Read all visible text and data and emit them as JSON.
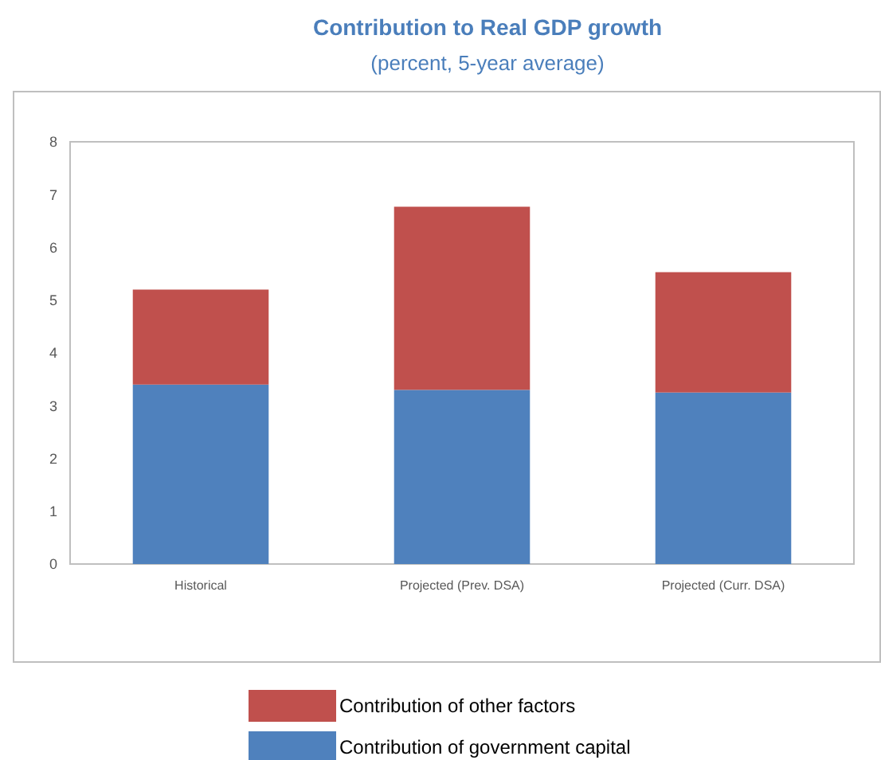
{
  "chart_data": {
    "type": "bar",
    "title": "Contribution to Real GDP growth",
    "subtitle": "(percent, 5-year average)",
    "categories": [
      "Historical",
      "Projected (Prev. DSA)",
      "Projected (Curr. DSA)"
    ],
    "series": [
      {
        "name": "Contribution of government capital",
        "color": "#4f81bd",
        "values": [
          3.4,
          3.3,
          3.25
        ]
      },
      {
        "name": "Contribution of other factors",
        "color": "#c0504d",
        "values": [
          1.8,
          3.47,
          2.28
        ]
      }
    ],
    "stacked": true,
    "ylim": [
      0,
      8
    ],
    "yticks": [
      0,
      1,
      2,
      3,
      4,
      5,
      6,
      7,
      8
    ],
    "grid": false,
    "legend": "bottom"
  }
}
